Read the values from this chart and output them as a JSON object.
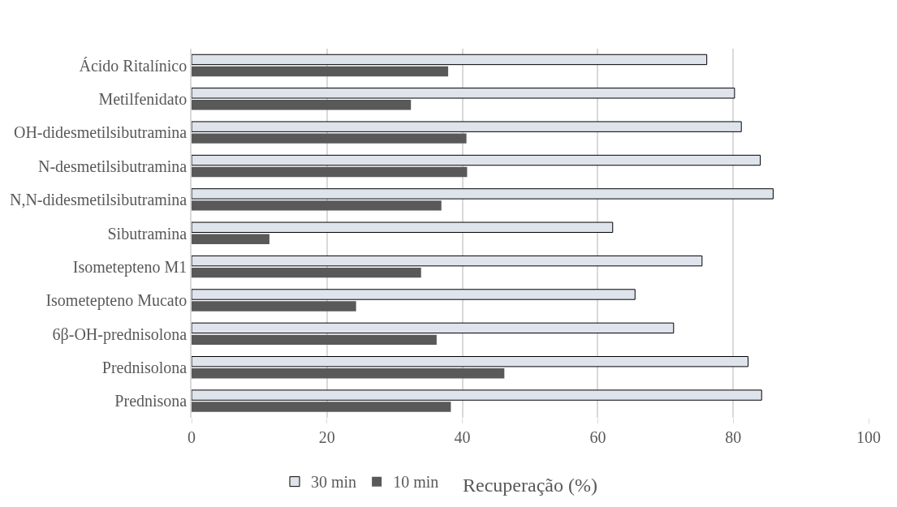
{
  "chart_data": {
    "type": "bar",
    "orientation": "horizontal",
    "xlabel": "Recuperação (%)",
    "categories": [
      "Ácido Ritalínico",
      "Metilfenidato",
      "OH-didesmetilsibutramina",
      "N-desmetilsibutramina",
      "N,N-didesmetilsibutramina",
      "Sibutramina",
      "Isometepteno M1",
      "Isometepteno Mucato",
      "6β-OH-prednisolona",
      "Prednisolona",
      "Prednisona"
    ],
    "series": [
      {
        "name": "30 min",
        "color": "#dfe4ec",
        "values": [
          76.1,
          80.2,
          81.2,
          84,
          85.9,
          62.2,
          75.4,
          65.5,
          71.2,
          82.2,
          84.2
        ]
      },
      {
        "name": "10 min",
        "color": "#595959",
        "values": [
          37.9,
          32.4,
          40.6,
          40.7,
          36.9,
          11.5,
          33.9,
          24.3,
          36.2,
          46.2,
          38.3
        ]
      }
    ],
    "xlim": [
      0,
      100
    ],
    "xticks": [
      0,
      20,
      40,
      60,
      80,
      100
    ],
    "grid": "x",
    "legend": "bottom"
  }
}
